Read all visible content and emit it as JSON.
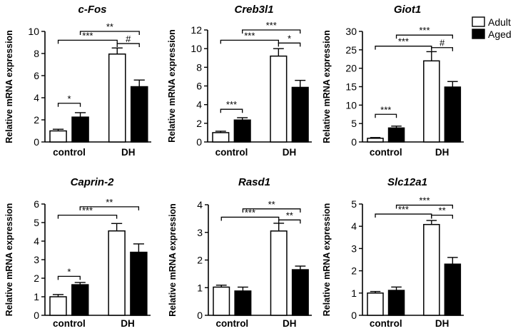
{
  "legend": {
    "entries": [
      {
        "name": "Adult",
        "fill": "#ffffff"
      },
      {
        "name": "Aged",
        "fill": "#000000"
      }
    ]
  },
  "chart_data": [
    {
      "type": "bar",
      "title": "c-Fos",
      "ylabel": "Relative mRNA expression",
      "categories": [
        "control",
        "DH"
      ],
      "ylim": [
        0,
        10
      ],
      "yticks": [
        0,
        2,
        4,
        6,
        8,
        10
      ],
      "series": [
        {
          "name": "Adult",
          "values": [
            1.0,
            7.95
          ],
          "errors": [
            0.15,
            0.55
          ]
        },
        {
          "name": "Aged",
          "values": [
            2.25,
            5.0
          ],
          "errors": [
            0.4,
            0.6
          ]
        }
      ],
      "annotations": [
        {
          "from": [
            "control",
            "Adult"
          ],
          "to": [
            "control",
            "Aged"
          ],
          "label": "*",
          "y": 3.5
        },
        {
          "from": [
            "control",
            "Adult"
          ],
          "to": [
            "DH",
            "Adult"
          ],
          "label": "***",
          "y": 9.2
        },
        {
          "from": [
            "control",
            "Aged"
          ],
          "to": [
            "DH",
            "Aged"
          ],
          "label": "**",
          "y": 10.0
        },
        {
          "from": [
            "DH",
            "Adult"
          ],
          "to": [
            "DH",
            "Aged"
          ],
          "label": "#",
          "y": 8.9
        }
      ]
    },
    {
      "type": "bar",
      "title": "Creb3l1",
      "ylabel": "Relative mRNA expression",
      "categories": [
        "control",
        "DH"
      ],
      "ylim": [
        0,
        12
      ],
      "yticks": [
        0,
        2,
        4,
        6,
        8,
        10,
        12
      ],
      "series": [
        {
          "name": "Adult",
          "values": [
            1.0,
            9.2
          ],
          "errors": [
            0.15,
            0.8
          ]
        },
        {
          "name": "Aged",
          "values": [
            2.35,
            5.85
          ],
          "errors": [
            0.25,
            0.75
          ]
        }
      ],
      "annotations": [
        {
          "from": [
            "control",
            "Adult"
          ],
          "to": [
            "control",
            "Aged"
          ],
          "label": "***",
          "y": 3.5
        },
        {
          "from": [
            "control",
            "Adult"
          ],
          "to": [
            "DH",
            "Adult"
          ],
          "label": "***",
          "y": 10.9
        },
        {
          "from": [
            "control",
            "Aged"
          ],
          "to": [
            "DH",
            "Aged"
          ],
          "label": "***",
          "y": 12.0
        },
        {
          "from": [
            "DH",
            "Adult"
          ],
          "to": [
            "DH",
            "Aged"
          ],
          "label": "*",
          "y": 10.6
        }
      ]
    },
    {
      "type": "bar",
      "title": "Giot1",
      "ylabel": "Relative mRNA expression",
      "categories": [
        "control",
        "DH"
      ],
      "ylim": [
        0,
        30
      ],
      "yticks": [
        0,
        5,
        10,
        15,
        20,
        25,
        30
      ],
      "series": [
        {
          "name": "Adult",
          "values": [
            1.0,
            22.0
          ],
          "errors": [
            0.2,
            2.5
          ]
        },
        {
          "name": "Aged",
          "values": [
            3.8,
            14.9
          ],
          "errors": [
            0.5,
            1.5
          ]
        }
      ],
      "annotations": [
        {
          "from": [
            "control",
            "Adult"
          ],
          "to": [
            "control",
            "Aged"
          ],
          "label": "***",
          "y": 7.5
        },
        {
          "from": [
            "control",
            "Adult"
          ],
          "to": [
            "DH",
            "Adult"
          ],
          "label": "***",
          "y": 26.0
        },
        {
          "from": [
            "control",
            "Aged"
          ],
          "to": [
            "DH",
            "Aged"
          ],
          "label": "***",
          "y": 29.0
        },
        {
          "from": [
            "DH",
            "Adult"
          ],
          "to": [
            "DH",
            "Aged"
          ],
          "label": "#",
          "y": 25.6
        }
      ]
    },
    {
      "type": "bar",
      "title": "Caprin-2",
      "ylabel": "Relative mRNA expression",
      "categories": [
        "control",
        "DH"
      ],
      "ylim": [
        0,
        6
      ],
      "yticks": [
        0,
        1,
        2,
        3,
        4,
        5,
        6
      ],
      "series": [
        {
          "name": "Adult",
          "values": [
            1.0,
            4.55
          ],
          "errors": [
            0.12,
            0.4
          ]
        },
        {
          "name": "Aged",
          "values": [
            1.65,
            3.4
          ],
          "errors": [
            0.12,
            0.45
          ]
        }
      ],
      "annotations": [
        {
          "from": [
            "control",
            "Adult"
          ],
          "to": [
            "control",
            "Aged"
          ],
          "label": "*",
          "y": 2.1
        },
        {
          "from": [
            "control",
            "Adult"
          ],
          "to": [
            "DH",
            "Adult"
          ],
          "label": "***",
          "y": 5.4
        },
        {
          "from": [
            "control",
            "Aged"
          ],
          "to": [
            "DH",
            "Aged"
          ],
          "label": "**",
          "y": 5.85
        }
      ]
    },
    {
      "type": "bar",
      "title": "Rasd1",
      "ylabel": "Relative mRNA expression",
      "categories": [
        "control",
        "DH"
      ],
      "ylim": [
        0,
        4
      ],
      "yticks": [
        0,
        1,
        2,
        3,
        4
      ],
      "series": [
        {
          "name": "Adult",
          "values": [
            1.02,
            3.05
          ],
          "errors": [
            0.07,
            0.28
          ]
        },
        {
          "name": "Aged",
          "values": [
            0.88,
            1.65
          ],
          "errors": [
            0.14,
            0.13
          ]
        }
      ],
      "annotations": [
        {
          "from": [
            "control",
            "Adult"
          ],
          "to": [
            "DH",
            "Adult"
          ],
          "label": "***",
          "y": 3.55
        },
        {
          "from": [
            "control",
            "Aged"
          ],
          "to": [
            "DH",
            "Aged"
          ],
          "label": "**",
          "y": 3.85
        },
        {
          "from": [
            "DH",
            "Adult"
          ],
          "to": [
            "DH",
            "Aged"
          ],
          "label": "**",
          "y": 3.45
        }
      ]
    },
    {
      "type": "bar",
      "title": "Slc12a1",
      "ylabel": "Relative mRNA expression",
      "categories": [
        "control",
        "DH"
      ],
      "ylim": [
        0,
        5
      ],
      "yticks": [
        0,
        1,
        2,
        3,
        4,
        5
      ],
      "series": [
        {
          "name": "Adult",
          "values": [
            1.0,
            4.08
          ],
          "errors": [
            0.07,
            0.18
          ]
        },
        {
          "name": "Aged",
          "values": [
            1.12,
            2.3
          ],
          "errors": [
            0.15,
            0.3
          ]
        }
      ],
      "annotations": [
        {
          "from": [
            "control",
            "Adult"
          ],
          "to": [
            "DH",
            "Adult"
          ],
          "label": "***",
          "y": 4.55
        },
        {
          "from": [
            "control",
            "Aged"
          ],
          "to": [
            "DH",
            "Aged"
          ],
          "label": "***",
          "y": 4.95
        },
        {
          "from": [
            "DH",
            "Adult"
          ],
          "to": [
            "DH",
            "Aged"
          ],
          "label": "**",
          "y": 4.5
        }
      ]
    }
  ]
}
